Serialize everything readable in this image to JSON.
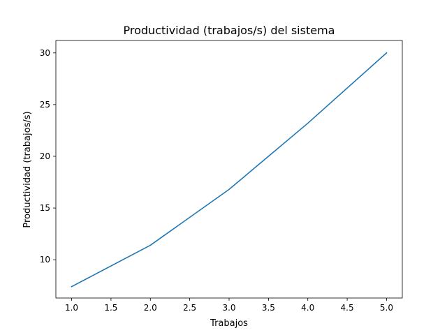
{
  "chart_data": {
    "type": "line",
    "title": "Productividad (trabajos/s) del sistema",
    "xlabel": "Trabajos",
    "ylabel": "Productividad (trabajos/s)",
    "xlim": [
      0.8,
      5.2
    ],
    "ylim": [
      6.3,
      31.2
    ],
    "xticks": [
      1.0,
      1.5,
      2.0,
      2.5,
      3.0,
      3.5,
      4.0,
      4.5,
      5.0
    ],
    "xtick_labels": [
      "1.0",
      "1.5",
      "2.0",
      "2.5",
      "3.0",
      "3.5",
      "4.0",
      "4.5",
      "5.0"
    ],
    "yticks": [
      10,
      15,
      20,
      25,
      30
    ],
    "ytick_labels": [
      "10",
      "15",
      "20",
      "25",
      "30"
    ],
    "grid": false,
    "series": [
      {
        "color": "#1f77b4",
        "x": [
          1.0,
          2.0,
          3.0,
          4.0,
          5.0
        ],
        "y": [
          7.4,
          11.4,
          16.8,
          23.2,
          30.0
        ]
      }
    ]
  }
}
